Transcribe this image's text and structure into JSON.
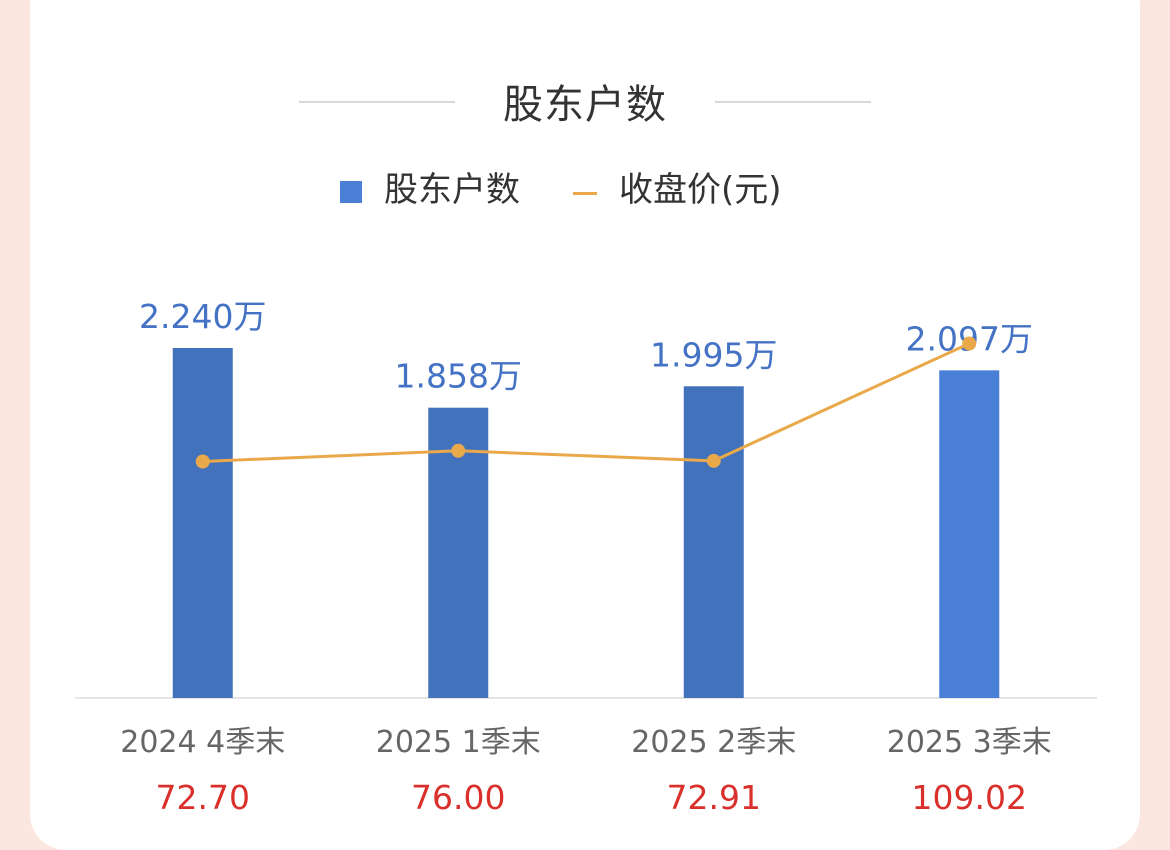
{
  "title": "股东户数",
  "legend": {
    "bar_label": "股东户数",
    "line_label": "收盘价(元)"
  },
  "colors": {
    "bar": "#4a7fd6",
    "bar_dark": "#4272bc",
    "line": "#e9a94a",
    "bar_label": "#4472c4",
    "price_label": "#d9302b",
    "axis_label": "#666666",
    "axis_line": "#e5e5e5"
  },
  "chart_data": {
    "type": "bar",
    "categories": [
      "2024 4季末",
      "2025 1季末",
      "2025 2季末",
      "2025 3季末"
    ],
    "series": [
      {
        "name": "股东户数",
        "type": "bar",
        "values": [
          2.24,
          1.858,
          1.995,
          2.097
        ],
        "labels": [
          "2.240万",
          "1.858万",
          "1.995万",
          "2.097万"
        ]
      },
      {
        "name": "收盘价(元)",
        "type": "line",
        "values": [
          72.7,
          76.0,
          72.91,
          109.02
        ],
        "labels": [
          "72.70",
          "76.00",
          "72.91",
          "109.02"
        ]
      }
    ]
  }
}
